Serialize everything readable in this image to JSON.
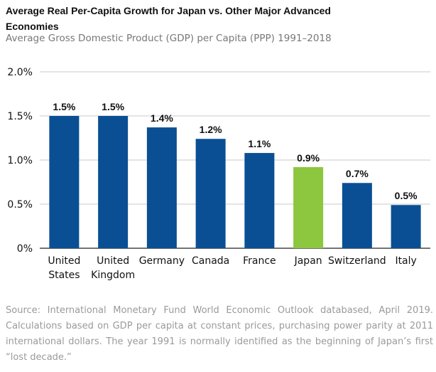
{
  "chart_data": {
    "type": "bar",
    "title_line1": "Average Real Per-Capita Growth for Japan vs. Other Major Advanced",
    "title_line2": "Economies",
    "subtitle": "Average Gross Domestic Product (GDP) per Capita (PPP) 1991–2018",
    "categories": [
      [
        "United",
        "States"
      ],
      [
        "United",
        "Kingdom"
      ],
      [
        "Germany"
      ],
      [
        "Canada"
      ],
      [
        "France"
      ],
      [
        "Japan"
      ],
      [
        "Switzerland"
      ],
      [
        "Italy"
      ]
    ],
    "values": [
      1.5,
      1.5,
      1.37,
      1.24,
      1.08,
      0.92,
      0.74,
      0.49
    ],
    "data_labels": [
      "1.5%",
      "1.5%",
      "1.4%",
      "1.2%",
      "1.1%",
      "0.9%",
      "0.7%",
      "0.5%"
    ],
    "ylim": [
      0,
      2.0
    ],
    "yticks": [
      0,
      0.5,
      1.0,
      1.5,
      2.0
    ],
    "ytick_labels": [
      "0%",
      "0.5%",
      "1.0%",
      "1.5%",
      "2.0%"
    ],
    "grid": true,
    "colors": {
      "default": "#0a4f94",
      "highlight": "#8dc63f"
    },
    "highlight_index": 5
  },
  "source_note": "Source: International Monetary Fund World Economic Outlook databased, April 2019. Calculations based on GDP per capita at constant prices, purchasing power parity at 2011 international dollars. The year 1991 is normally identified as the beginning of Japan’s first “lost decade.”"
}
